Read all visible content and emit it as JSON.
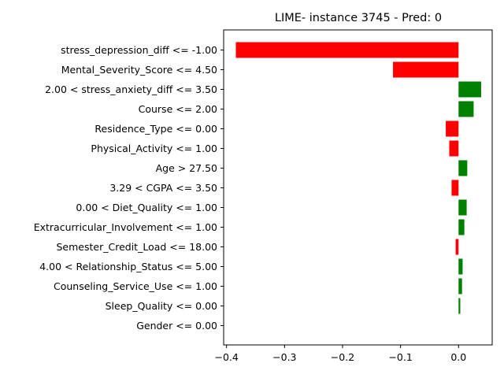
{
  "chart_data": {
    "type": "bar",
    "orientation": "horizontal",
    "title": "LIME- instance 3745 - Pred: 0",
    "xlabel": "",
    "ylabel": "",
    "xlim": [
      -0.405,
      0.058
    ],
    "xticks": [
      -0.4,
      -0.3,
      -0.2,
      -0.1,
      0.0
    ],
    "xtick_labels": [
      "−0.4",
      "−0.3",
      "−0.2",
      "−0.1",
      "0.0"
    ],
    "grid": false,
    "categories": [
      "stress_depression_diff <= -1.00",
      "Mental_Severity_Score <= 4.50",
      "2.00 < stress_anxiety_diff <= 3.50",
      "Course <= 2.00",
      "Residence_Type <= 0.00",
      "Physical_Activity <= 1.00",
      "Age > 27.50",
      "3.29 < CGPA <= 3.50",
      "0.00 < Diet_Quality <= 1.00",
      "Extracurricular_Involvement <= 1.00",
      "Semester_Credit_Load <= 18.00",
      "4.00 < Relationship_Status <= 5.00",
      "Counseling_Service_Use <= 1.00",
      "Sleep_Quality <= 0.00",
      "Gender <= 0.00"
    ],
    "values": [
      -0.384,
      -0.113,
      0.039,
      0.026,
      -0.022,
      -0.016,
      0.015,
      -0.012,
      0.014,
      0.01,
      -0.005,
      0.007,
      0.006,
      0.003,
      0.0
    ],
    "colors": {
      "positive": "#008000",
      "negative": "#ff0000"
    }
  }
}
